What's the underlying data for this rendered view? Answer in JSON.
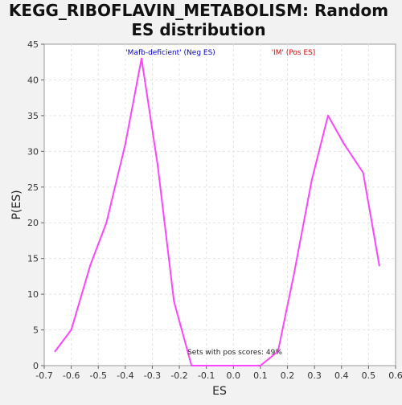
{
  "chart_data": {
    "type": "line",
    "title_line1": "KEGG_RIBOFLAVIN_METABOLISM: Random",
    "title_line2": "ES distribution",
    "xlabel": "ES",
    "ylabel": "P(ES)",
    "xlim": [
      -0.7,
      0.6
    ],
    "ylim": [
      0,
      45
    ],
    "x_ticks": [
      -0.7,
      -0.6,
      -0.5,
      -0.4,
      -0.3,
      -0.2,
      -0.1,
      0.0,
      0.1,
      0.2,
      0.3,
      0.4,
      0.5,
      0.6
    ],
    "x_tick_labels": [
      "-0.7",
      "-0.6",
      "-0.5",
      "-0.4",
      "-0.3",
      "-0.2",
      "-0.1",
      "0.0",
      "0.1",
      "0.2",
      "0.3",
      "0.4",
      "0.5",
      "0.6"
    ],
    "y_ticks": [
      0,
      5,
      10,
      15,
      20,
      25,
      30,
      35,
      40,
      45
    ],
    "y_tick_labels": [
      "0",
      "5",
      "10",
      "15",
      "20",
      "25",
      "30",
      "35",
      "40",
      "45"
    ],
    "grid": true,
    "line_color": "#ff44ff",
    "series": [
      {
        "x": [
          -0.66,
          -0.6,
          -0.53,
          -0.47,
          -0.4,
          -0.34,
          -0.28,
          -0.22,
          -0.155,
          -0.1,
          0.0,
          0.1,
          0.165,
          0.225,
          0.29,
          0.35,
          0.41,
          0.48,
          0.54
        ],
        "y": [
          2,
          5,
          14,
          20,
          31,
          43,
          28,
          9,
          0,
          0,
          0,
          0,
          2,
          13,
          26,
          35,
          31,
          27,
          14
        ]
      }
    ],
    "annotations": {
      "neg_label": "'Mafb-deficient' (Neg ES)",
      "neg_color": "#0000cc",
      "pos_label": "'IM' (Pos ES)",
      "pos_color": "#dd0000",
      "summary": "Sets with pos scores: 49%"
    }
  }
}
